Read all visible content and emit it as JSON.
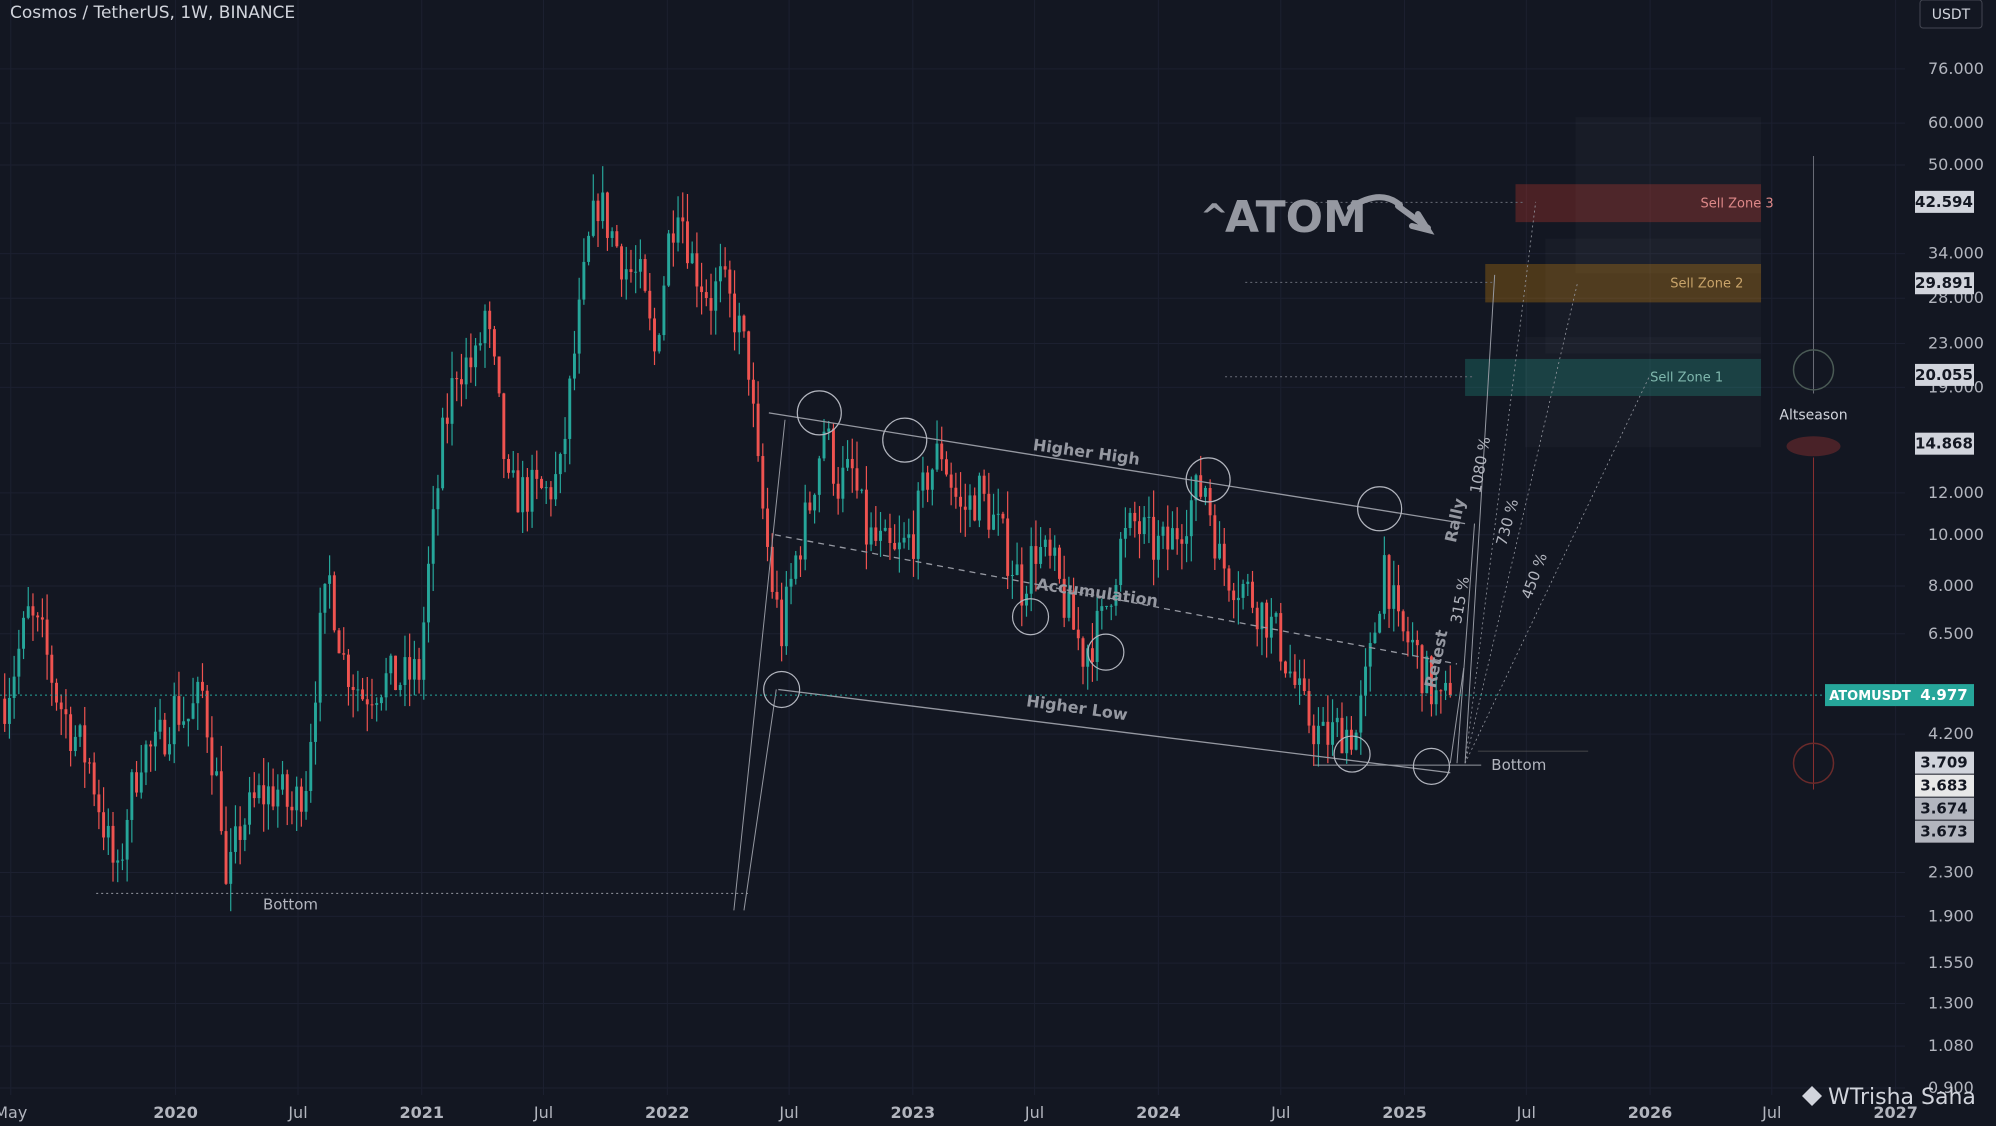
{
  "header": {
    "symbol_title": "Cosmos / TetherUS, 1W, BINANCE",
    "currency_button": "USDT",
    "watermark": "WTrisha Saha"
  },
  "colors": {
    "background": "#131722",
    "up_candle": "#26a69a",
    "down_candle": "#ef5350",
    "text": "#b2b5be",
    "grid": "#1c2030",
    "sell_zone_3": "#c0392b",
    "sell_zone_2": "#c87f0a",
    "sell_zone_1": "#1e8e7e",
    "current_price_tag": "#26a69a"
  },
  "chart_data": {
    "type": "candlestick",
    "x_scale": "time",
    "y_scale": "log",
    "ylim": [
      0.9,
      90
    ],
    "x_range": [
      "2019-04-15",
      "2027-01-15"
    ],
    "y_ticks": [
      "76.000",
      "60.000",
      "50.000",
      "34.000",
      "28.000",
      "23.000",
      "19.000",
      "12.000",
      "10.000",
      "8.000",
      "6.500",
      "4.200",
      "2.300",
      "1.900",
      "1.550",
      "1.300",
      "1.080",
      "0.900"
    ],
    "x_ticks": [
      {
        "label": "May",
        "date": "2019-05-01",
        "major": false
      },
      {
        "label": "2020",
        "date": "2020-01-01",
        "major": true
      },
      {
        "label": "Jul",
        "date": "2020-07-01",
        "major": false
      },
      {
        "label": "2021",
        "date": "2021-01-01",
        "major": true
      },
      {
        "label": "Jul",
        "date": "2021-07-01",
        "major": false
      },
      {
        "label": "2022",
        "date": "2022-01-01",
        "major": true
      },
      {
        "label": "Jul",
        "date": "2022-07-01",
        "major": false
      },
      {
        "label": "2023",
        "date": "2023-01-01",
        "major": true
      },
      {
        "label": "Jul",
        "date": "2023-07-01",
        "major": false
      },
      {
        "label": "2024",
        "date": "2024-01-01",
        "major": true
      },
      {
        "label": "Jul",
        "date": "2024-07-01",
        "major": false
      },
      {
        "label": "2025",
        "date": "2025-01-01",
        "major": true
      },
      {
        "label": "Jul",
        "date": "2025-07-01",
        "major": false
      },
      {
        "label": "2026",
        "date": "2026-01-01",
        "major": true
      },
      {
        "label": "Jul",
        "date": "2026-07-01",
        "major": false
      },
      {
        "label": "2027",
        "date": "2027-01-01",
        "major": true
      }
    ],
    "close_path": [
      [
        "2019-04-22",
        4.9
      ],
      [
        "2019-05-06",
        5.6
      ],
      [
        "2019-05-27",
        7.0
      ],
      [
        "2019-06-17",
        6.3
      ],
      [
        "2019-07-08",
        5.0
      ],
      [
        "2019-07-29",
        4.3
      ],
      [
        "2019-08-26",
        3.7
      ],
      [
        "2019-09-23",
        2.6
      ],
      [
        "2019-10-07",
        2.2
      ],
      [
        "2019-10-21",
        3.0
      ],
      [
        "2019-11-11",
        3.9
      ],
      [
        "2019-12-02",
        3.9
      ],
      [
        "2019-12-30",
        4.7
      ],
      [
        "2020-01-20",
        4.5
      ],
      [
        "2020-02-10",
        5.0
      ],
      [
        "2020-03-09",
        3.0
      ],
      [
        "2020-03-16",
        2.1
      ],
      [
        "2020-04-06",
        2.8
      ],
      [
        "2020-05-04",
        3.2
      ],
      [
        "2020-06-01",
        3.3
      ],
      [
        "2020-06-22",
        3.0
      ],
      [
        "2020-07-13",
        3.5
      ],
      [
        "2020-08-03",
        6.5
      ],
      [
        "2020-08-17",
        8.2
      ],
      [
        "2020-09-07",
        5.8
      ],
      [
        "2020-10-05",
        5.0
      ],
      [
        "2020-11-02",
        5.3
      ],
      [
        "2020-11-30",
        5.3
      ],
      [
        "2020-12-28",
        5.5
      ],
      [
        "2021-01-11",
        8.5
      ],
      [
        "2021-02-01",
        15.0
      ],
      [
        "2021-02-22",
        21.0
      ],
      [
        "2021-03-22",
        21.0
      ],
      [
        "2021-04-05",
        26.0
      ],
      [
        "2021-04-19",
        20.0
      ],
      [
        "2021-05-10",
        12.0
      ],
      [
        "2021-06-07",
        12.0
      ],
      [
        "2021-07-05",
        12.0
      ],
      [
        "2021-07-26",
        13.0
      ],
      [
        "2021-08-16",
        22.0
      ],
      [
        "2021-09-06",
        35.0
      ],
      [
        "2021-09-20",
        43.0
      ],
      [
        "2021-10-11",
        37.0
      ],
      [
        "2021-11-01",
        32.0
      ],
      [
        "2021-11-22",
        30.0
      ],
      [
        "2021-12-13",
        22.0
      ],
      [
        "2022-01-03",
        36.0
      ],
      [
        "2022-01-17",
        44.0
      ],
      [
        "2022-02-07",
        33.0
      ],
      [
        "2022-03-07",
        28.0
      ],
      [
        "2022-03-21",
        30.0
      ],
      [
        "2022-04-11",
        26.0
      ],
      [
        "2022-05-02",
        21.0
      ],
      [
        "2022-05-16",
        13.0
      ],
      [
        "2022-06-06",
        8.0
      ],
      [
        "2022-06-20",
        6.5
      ],
      [
        "2022-07-11",
        9.0
      ],
      [
        "2022-08-01",
        11.5
      ],
      [
        "2022-08-22",
        16.0
      ],
      [
        "2022-09-12",
        12.5
      ],
      [
        "2022-10-03",
        13.0
      ],
      [
        "2022-10-24",
        10.0
      ],
      [
        "2022-11-14",
        9.5
      ],
      [
        "2022-12-05",
        9.0
      ],
      [
        "2023-01-02",
        10.0
      ],
      [
        "2023-01-23",
        13.0
      ],
      [
        "2023-02-13",
        14.5
      ],
      [
        "2023-03-13",
        11.0
      ],
      [
        "2023-04-10",
        12.0
      ],
      [
        "2023-05-08",
        10.2
      ],
      [
        "2023-06-12",
        8.0
      ],
      [
        "2023-07-03",
        9.5
      ],
      [
        "2023-07-31",
        8.5
      ],
      [
        "2023-08-21",
        7.0
      ],
      [
        "2023-09-11",
        6.0
      ],
      [
        "2023-10-09",
        6.8
      ],
      [
        "2023-11-06",
        9.5
      ],
      [
        "2023-11-27",
        10.5
      ],
      [
        "2023-12-25",
        9.5
      ],
      [
        "2024-01-15",
        9.5
      ],
      [
        "2024-02-19",
        11.5
      ],
      [
        "2024-03-11",
        12.5
      ],
      [
        "2024-04-01",
        9.0
      ],
      [
        "2024-04-15",
        8.5
      ],
      [
        "2024-05-13",
        7.8
      ],
      [
        "2024-06-10",
        7.0
      ],
      [
        "2024-07-01",
        6.2
      ],
      [
        "2024-08-05",
        4.6
      ],
      [
        "2024-09-02",
        4.1
      ],
      [
        "2024-09-30",
        4.3
      ],
      [
        "2024-10-21",
        4.2
      ],
      [
        "2024-11-11",
        5.8
      ],
      [
        "2024-12-02",
        9.0
      ],
      [
        "2024-12-23",
        6.5
      ],
      [
        "2025-01-13",
        6.2
      ],
      [
        "2025-02-03",
        5.3
      ],
      [
        "2025-02-24",
        4.7
      ],
      [
        "2025-03-10",
        4.977
      ]
    ],
    "current_price": {
      "label": "ATOMUSDT",
      "value": "4.977"
    },
    "price_tags": [
      {
        "value": "42.594",
        "color": "#d1d4dc"
      },
      {
        "value": "29.891",
        "color": "#d1d4dc"
      },
      {
        "value": "20.055",
        "color": "#d1d4dc"
      },
      {
        "value": "14.868",
        "color": "#d1d4dc"
      },
      {
        "value": "3.709",
        "color": "#d1d4dc"
      },
      {
        "value": "3.683",
        "color": "#e8e8e8"
      },
      {
        "value": "3.674",
        "color": "#b2b5be"
      },
      {
        "value": "3.673",
        "color": "#b2b5be"
      }
    ],
    "sell_zones": [
      {
        "label": "Sell Zone 3",
        "low": 39.0,
        "high": 46.0,
        "top": 56.0,
        "color_key": "sell_zone_3",
        "start": "2025-06-15"
      },
      {
        "label": "Sell Zone 2",
        "low": 27.5,
        "high": 32.5,
        "top": 33.0,
        "color_key": "sell_zone_2",
        "start": "2025-05-01"
      },
      {
        "label": "Sell Zone 1",
        "low": 18.3,
        "high": 21.5,
        "top": 21.5,
        "color_key": "sell_zone_1",
        "start": "2025-04-01"
      }
    ],
    "annotations": {
      "headline": "ATOM",
      "higher_high": "Higher High",
      "higher_low": "Higher Low",
      "accumulation": "Accumulation",
      "rally": "Rally",
      "retest": "Retest",
      "bottom_left": "Bottom",
      "bottom_right": "Bottom",
      "altseason": "Altseason",
      "pct_315": "315 %",
      "pct_450": "450 %",
      "pct_730": "730 %",
      "pct_1080": "1080 %"
    }
  }
}
